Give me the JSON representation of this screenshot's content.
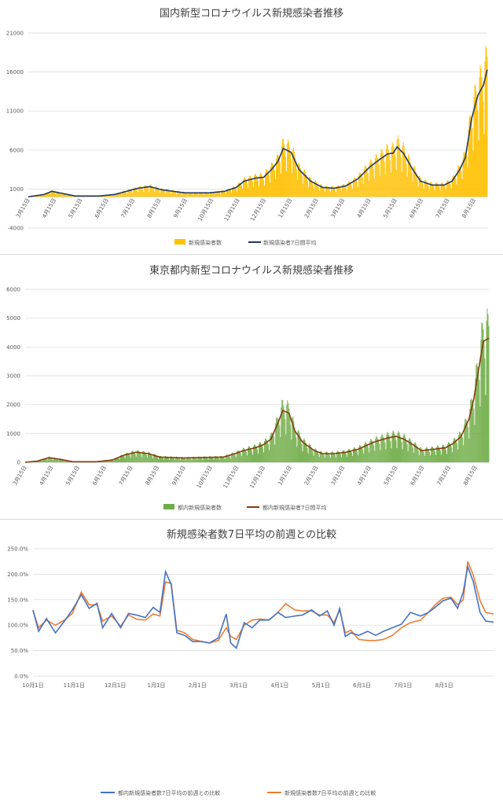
{
  "chart_data": [
    {
      "type": "bar",
      "title": "国内新型コロナウイルス新規感染者推移",
      "yticks": [
        "-4000",
        "1000",
        "6000",
        "11000",
        "16000",
        "21000"
      ],
      "ylim": [
        -4000,
        21000
      ],
      "xticks": [
        "3月15日",
        "4月15日",
        "5月15日",
        "6月15日",
        "7月15日",
        "8月15日",
        "9月15日",
        "10月15日",
        "11月15日",
        "12月15日",
        "1月15日",
        "2月15日",
        "3月15日",
        "4月15日",
        "5月15日",
        "6月15日",
        "7月15日",
        "8月15日"
      ],
      "grid": true,
      "legend_position": "bottom",
      "series": [
        {
          "name": "新規感染者数",
          "kind": "bar",
          "color": "#ffc000"
        },
        {
          "name": "新規感染者7日間平均",
          "kind": "line",
          "color": "#203864"
        }
      ],
      "anchors": [
        [
          0,
          0
        ],
        [
          20,
          300
        ],
        [
          30,
          700
        ],
        [
          45,
          400
        ],
        [
          60,
          100
        ],
        [
          90,
          100
        ],
        [
          110,
          300
        ],
        [
          140,
          1100
        ],
        [
          155,
          1300
        ],
        [
          170,
          900
        ],
        [
          200,
          500
        ],
        [
          230,
          500
        ],
        [
          250,
          700
        ],
        [
          265,
          1200
        ],
        [
          275,
          2000
        ],
        [
          290,
          2400
        ],
        [
          300,
          2500
        ],
        [
          310,
          3500
        ],
        [
          318,
          4500
        ],
        [
          325,
          6200
        ],
        [
          335,
          5700
        ],
        [
          345,
          3500
        ],
        [
          360,
          2000
        ],
        [
          375,
          1200
        ],
        [
          390,
          1100
        ],
        [
          405,
          1400
        ],
        [
          420,
          2300
        ],
        [
          435,
          3800
        ],
        [
          448,
          4800
        ],
        [
          458,
          5500
        ],
        [
          465,
          5600
        ],
        [
          470,
          6400
        ],
        [
          478,
          5600
        ],
        [
          490,
          3500
        ],
        [
          500,
          2000
        ],
        [
          515,
          1500
        ],
        [
          530,
          1500
        ],
        [
          540,
          2000
        ],
        [
          550,
          3500
        ],
        [
          557,
          5000
        ],
        [
          565,
          10000
        ],
        [
          573,
          13000
        ],
        [
          580,
          14300
        ],
        [
          585,
          16300
        ]
      ]
    },
    {
      "type": "bar",
      "title": "東京都内新型コロナウイルス新規感染者推移",
      "yticks": [
        "0",
        "1000",
        "2000",
        "3000",
        "4000",
        "5000",
        "6000"
      ],
      "ylim": [
        0,
        6000
      ],
      "xticks": [
        "3月15日",
        "4月15日",
        "5月15日",
        "6月15日",
        "7月15日",
        "8月15日",
        "9月15日",
        "10月15日",
        "11月15日",
        "12月15日",
        "1月15日",
        "2月15日",
        "3月15日",
        "4月15日",
        "5月15日",
        "6月15日",
        "7月15日",
        "8月15日"
      ],
      "grid": true,
      "legend_position": "bottom",
      "series": [
        {
          "name": "都内新規感染者数",
          "kind": "bar",
          "color": "#70ad47"
        },
        {
          "name": "都内新規感染者7日間平均",
          "kind": "line",
          "color": "#843c0c"
        }
      ],
      "anchors": [
        [
          0,
          0
        ],
        [
          15,
          40
        ],
        [
          30,
          160
        ],
        [
          45,
          100
        ],
        [
          60,
          20
        ],
        [
          90,
          20
        ],
        [
          110,
          80
        ],
        [
          125,
          250
        ],
        [
          140,
          350
        ],
        [
          155,
          300
        ],
        [
          170,
          180
        ],
        [
          200,
          150
        ],
        [
          230,
          170
        ],
        [
          250,
          180
        ],
        [
          265,
          300
        ],
        [
          275,
          400
        ],
        [
          290,
          500
        ],
        [
          300,
          600
        ],
        [
          310,
          800
        ],
        [
          318,
          1300
        ],
        [
          325,
          1800
        ],
        [
          333,
          1700
        ],
        [
          340,
          1100
        ],
        [
          350,
          700
        ],
        [
          365,
          400
        ],
        [
          375,
          300
        ],
        [
          390,
          300
        ],
        [
          405,
          350
        ],
        [
          420,
          450
        ],
        [
          440,
          700
        ],
        [
          458,
          850
        ],
        [
          468,
          900
        ],
        [
          478,
          800
        ],
        [
          490,
          600
        ],
        [
          500,
          400
        ],
        [
          515,
          450
        ],
        [
          530,
          500
        ],
        [
          540,
          650
        ],
        [
          550,
          900
        ],
        [
          560,
          1500
        ],
        [
          566,
          2200
        ],
        [
          572,
          3200
        ],
        [
          578,
          4200
        ],
        [
          585,
          4300
        ]
      ]
    },
    {
      "type": "line",
      "title": "新規感染者数7日平均の前週との比較",
      "yticks": [
        "0.0%",
        "50.0%",
        "100.0%",
        "150.0%",
        "200.0%",
        "250.0%"
      ],
      "ylim": [
        0,
        250
      ],
      "xticks": [
        "10月1日",
        "11月1日",
        "12月1日",
        "1月1日",
        "2月1日",
        "3月1日",
        "4月1日",
        "5月1日",
        "6月1日",
        "7月1日",
        "8月1日"
      ],
      "grid": true,
      "legend_position": "bottom",
      "series": [
        {
          "name": "都内新規感染者数7日平均の前週との比較",
          "color": "#4472c4"
        },
        {
          "name": "新規感染者数7日平均の前週との比較",
          "color": "#ed7d31"
        }
      ],
      "anchors_a": [
        [
          0,
          130
        ],
        [
          5,
          88
        ],
        [
          12,
          113
        ],
        [
          20,
          85
        ],
        [
          28,
          108
        ],
        [
          35,
          130
        ],
        [
          43,
          160
        ],
        [
          50,
          133
        ],
        [
          57,
          143
        ],
        [
          62,
          95
        ],
        [
          70,
          123
        ],
        [
          78,
          95
        ],
        [
          85,
          123
        ],
        [
          92,
          120
        ],
        [
          100,
          115
        ],
        [
          107,
          135
        ],
        [
          113,
          125
        ],
        [
          118,
          205
        ],
        [
          123,
          180
        ],
        [
          128,
          85
        ],
        [
          135,
          80
        ],
        [
          142,
          68
        ],
        [
          150,
          68
        ],
        [
          157,
          65
        ],
        [
          165,
          75
        ],
        [
          172,
          122
        ],
        [
          176,
          65
        ],
        [
          181,
          55
        ],
        [
          188,
          105
        ],
        [
          195,
          95
        ],
        [
          202,
          110
        ],
        [
          210,
          110
        ],
        [
          218,
          125
        ],
        [
          225,
          115
        ],
        [
          233,
          118
        ],
        [
          240,
          120
        ],
        [
          248,
          130
        ],
        [
          255,
          118
        ],
        [
          262,
          128
        ],
        [
          268,
          100
        ],
        [
          273,
          133
        ],
        [
          278,
          78
        ],
        [
          283,
          85
        ],
        [
          290,
          80
        ],
        [
          298,
          88
        ],
        [
          305,
          80
        ],
        [
          312,
          88
        ],
        [
          320,
          95
        ],
        [
          328,
          102
        ],
        [
          336,
          125
        ],
        [
          345,
          118
        ],
        [
          352,
          125
        ],
        [
          358,
          135
        ],
        [
          365,
          148
        ],
        [
          372,
          153
        ],
        [
          378,
          133
        ],
        [
          383,
          165
        ],
        [
          387,
          215
        ],
        [
          392,
          185
        ],
        [
          398,
          125
        ],
        [
          403,
          108
        ],
        [
          410,
          106
        ]
      ],
      "anchors_b": [
        [
          0,
          128
        ],
        [
          5,
          95
        ],
        [
          12,
          110
        ],
        [
          20,
          100
        ],
        [
          28,
          110
        ],
        [
          35,
          123
        ],
        [
          43,
          165
        ],
        [
          50,
          140
        ],
        [
          57,
          140
        ],
        [
          62,
          108
        ],
        [
          70,
          118
        ],
        [
          78,
          98
        ],
        [
          85,
          120
        ],
        [
          92,
          112
        ],
        [
          100,
          110
        ],
        [
          107,
          122
        ],
        [
          113,
          118
        ],
        [
          118,
          185
        ],
        [
          123,
          182
        ],
        [
          128,
          90
        ],
        [
          135,
          85
        ],
        [
          142,
          72
        ],
        [
          150,
          68
        ],
        [
          157,
          65
        ],
        [
          165,
          70
        ],
        [
          172,
          95
        ],
        [
          176,
          78
        ],
        [
          181,
          72
        ],
        [
          188,
          100
        ],
        [
          195,
          110
        ],
        [
          202,
          112
        ],
        [
          210,
          110
        ],
        [
          218,
          125
        ],
        [
          225,
          142
        ],
        [
          233,
          130
        ],
        [
          240,
          128
        ],
        [
          248,
          128
        ],
        [
          255,
          120
        ],
        [
          262,
          120
        ],
        [
          268,
          105
        ],
        [
          273,
          130
        ],
        [
          278,
          85
        ],
        [
          283,
          90
        ],
        [
          290,
          72
        ],
        [
          298,
          70
        ],
        [
          305,
          70
        ],
        [
          312,
          72
        ],
        [
          320,
          80
        ],
        [
          328,
          95
        ],
        [
          336,
          105
        ],
        [
          345,
          110
        ],
        [
          352,
          125
        ],
        [
          358,
          140
        ],
        [
          365,
          153
        ],
        [
          372,
          155
        ],
        [
          378,
          140
        ],
        [
          383,
          150
        ],
        [
          387,
          225
        ],
        [
          392,
          198
        ],
        [
          398,
          148
        ],
        [
          403,
          125
        ],
        [
          410,
          122
        ]
      ]
    }
  ]
}
